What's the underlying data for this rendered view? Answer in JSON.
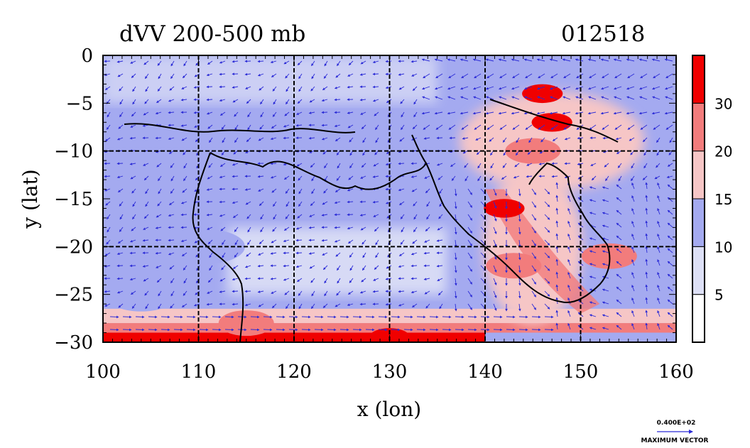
{
  "chart_data": {
    "type": "heatmap",
    "title": "dVV 200-500 mb",
    "date_label": "012518",
    "xlabel": "x (lon)",
    "ylabel": "y (lat)",
    "xlim": [
      100,
      160
    ],
    "ylim": [
      -30,
      0
    ],
    "x_ticks": [
      100,
      110,
      120,
      130,
      140,
      150,
      160
    ],
    "y_ticks": [
      0,
      -5,
      -10,
      -15,
      -20,
      -25,
      -30
    ],
    "grid": true,
    "grid_lines_x": [
      110,
      120,
      130,
      140,
      150
    ],
    "grid_lines_y": [
      -10,
      -20
    ],
    "colorbar": {
      "placement": "right",
      "levels": [
        5,
        10,
        15,
        20,
        30
      ],
      "colors": [
        "#ffffff",
        "#dde0f6",
        "#a4aaf0",
        "#f6c6c6",
        "#f27c7c",
        "#f00000"
      ]
    },
    "reference_vector": {
      "value": "0.400E+02",
      "label": "MAXIMUM VECTOR"
    },
    "field_features": [
      {
        "lon": 146,
        "lat": -4,
        "level": 30
      },
      {
        "lon": 147,
        "lat": -7,
        "level": 30
      },
      {
        "lon": 142,
        "lat": -16,
        "level": 30
      },
      {
        "lon": 130,
        "lat": -29.5,
        "level": 30
      },
      {
        "lon": 153,
        "lat": -21,
        "level": 20
      },
      {
        "lon": 145,
        "lat": -10,
        "level": 20
      },
      {
        "lon": 143,
        "lat": -22,
        "level": 20
      },
      {
        "lon": 115,
        "lat": -28,
        "level": 20
      },
      {
        "lon": 104,
        "lat": -25,
        "level": 10
      },
      {
        "lon": 111,
        "lat": -20,
        "level": 10
      },
      {
        "lon": 118,
        "lat": -14,
        "level": 10
      }
    ]
  }
}
